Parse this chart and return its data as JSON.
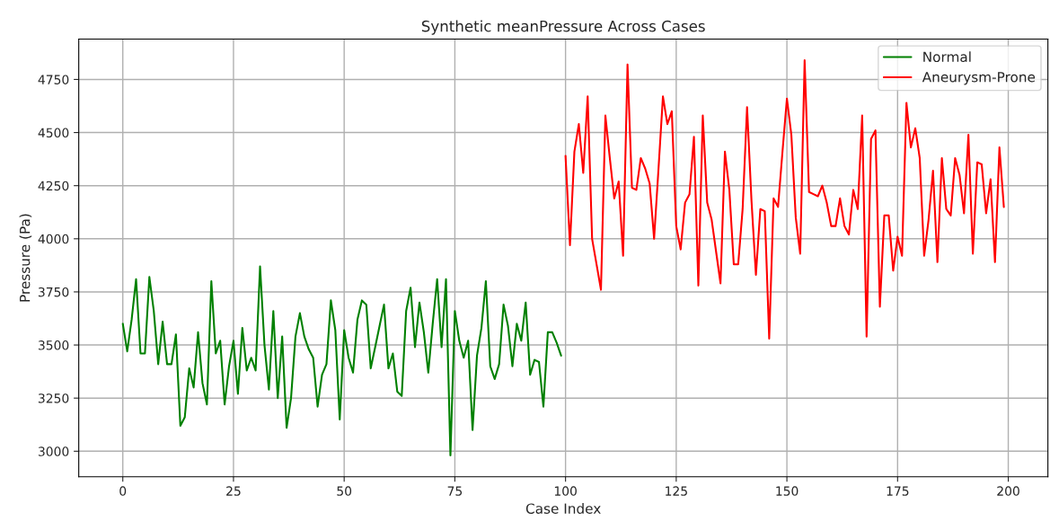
{
  "chart_data": {
    "type": "line",
    "title": "Synthetic meanPressure Across Cases",
    "xlabel": "Case Index",
    "ylabel": "Pressure (Pa)",
    "xlim": [
      -9.95,
      208.95
    ],
    "xticks": [
      0,
      25,
      50,
      75,
      100,
      125,
      150,
      175,
      200
    ],
    "ylim": [
      2880,
      4940
    ],
    "yticks": [
      3000,
      3250,
      3500,
      3750,
      4000,
      4250,
      4500,
      4750
    ],
    "grid": true,
    "legend": "top right",
    "series": [
      {
        "name": "Normal",
        "color": "#008000",
        "x": [
          0,
          1,
          2,
          3,
          4,
          5,
          6,
          7,
          8,
          9,
          10,
          11,
          12,
          13,
          14,
          15,
          16,
          17,
          18,
          19,
          20,
          21,
          22,
          23,
          24,
          25,
          26,
          27,
          28,
          29,
          30,
          31,
          32,
          33,
          34,
          35,
          36,
          37,
          38,
          39,
          40,
          41,
          42,
          43,
          44,
          45,
          46,
          47,
          48,
          49,
          50,
          51,
          52,
          53,
          54,
          55,
          56,
          57,
          58,
          59,
          60,
          61,
          62,
          63,
          64,
          65,
          66,
          67,
          68,
          69,
          70,
          71,
          72,
          73,
          74,
          75,
          76,
          77,
          78,
          79,
          80,
          81,
          82,
          83,
          84,
          85,
          86,
          87,
          88,
          89,
          90,
          91,
          92,
          93,
          94,
          95,
          96,
          97,
          98,
          99
        ],
        "values": [
          3600,
          3470,
          3620,
          3810,
          3460,
          3460,
          3820,
          3660,
          3410,
          3610,
          3410,
          3410,
          3550,
          3120,
          3160,
          3390,
          3300,
          3560,
          3320,
          3220,
          3800,
          3460,
          3520,
          3220,
          3400,
          3520,
          3270,
          3580,
          3380,
          3440,
          3380,
          3870,
          3500,
          3290,
          3660,
          3250,
          3540,
          3110,
          3250,
          3540,
          3650,
          3540,
          3480,
          3440,
          3210,
          3360,
          3410,
          3710,
          3570,
          3150,
          3570,
          3440,
          3370,
          3620,
          3710,
          3690,
          3390,
          3490,
          3590,
          3690,
          3390,
          3460,
          3280,
          3260,
          3660,
          3770,
          3490,
          3700,
          3560,
          3370,
          3600,
          3810,
          3490,
          3810,
          2980,
          3660,
          3520,
          3440,
          3520,
          3100,
          3450,
          3580,
          3800,
          3400,
          3340,
          3410,
          3690,
          3590,
          3400,
          3600,
          3520,
          3700,
          3360,
          3430,
          3420,
          3210,
          3560,
          3560,
          3510,
          3450
        ]
      },
      {
        "name": "Aneurysm-Prone",
        "color": "#ff0000",
        "x": [
          100,
          101,
          102,
          103,
          104,
          105,
          106,
          107,
          108,
          109,
          110,
          111,
          112,
          113,
          114,
          115,
          116,
          117,
          118,
          119,
          120,
          121,
          122,
          123,
          124,
          125,
          126,
          127,
          128,
          129,
          130,
          131,
          132,
          133,
          134,
          135,
          136,
          137,
          138,
          139,
          140,
          141,
          142,
          143,
          144,
          145,
          146,
          147,
          148,
          149,
          150,
          151,
          152,
          153,
          154,
          155,
          156,
          157,
          158,
          159,
          160,
          161,
          162,
          163,
          164,
          165,
          166,
          167,
          168,
          169,
          170,
          171,
          172,
          173,
          174,
          175,
          176,
          177,
          178,
          179,
          180,
          181,
          182,
          183,
          184,
          185,
          186,
          187,
          188,
          189,
          190,
          191,
          192,
          193,
          194,
          195,
          196,
          197,
          198,
          199
        ],
        "values": [
          4390,
          3970,
          4410,
          4540,
          4310,
          4670,
          4000,
          3880,
          3760,
          4580,
          4380,
          4190,
          4270,
          3920,
          4820,
          4240,
          4230,
          4380,
          4330,
          4260,
          4000,
          4330,
          4670,
          4540,
          4600,
          4060,
          3950,
          4170,
          4210,
          4480,
          3780,
          4580,
          4170,
          4090,
          3940,
          3790,
          4410,
          4230,
          3880,
          3880,
          4140,
          4620,
          4180,
          3830,
          4140,
          4130,
          3530,
          4190,
          4150,
          4410,
          4660,
          4490,
          4100,
          3930,
          4840,
          4220,
          4210,
          4200,
          4250,
          4170,
          4060,
          4060,
          4190,
          4060,
          4020,
          4230,
          4140,
          4580,
          3540,
          4470,
          4510,
          3680,
          4110,
          4110,
          3850,
          4010,
          3920,
          4640,
          4430,
          4520,
          4380,
          3920,
          4090,
          4320,
          3890,
          4380,
          4140,
          4110,
          4380,
          4300,
          4120,
          4490,
          3930,
          4360,
          4350,
          4120,
          4280,
          3890,
          4430,
          4150
        ]
      }
    ]
  }
}
